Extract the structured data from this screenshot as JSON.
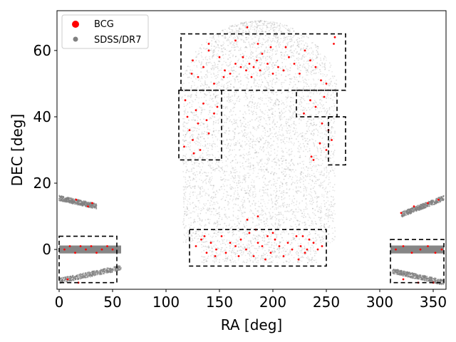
{
  "chart_data": {
    "type": "scatter",
    "xlabel": "RA [deg]",
    "ylabel": "DEC [deg]",
    "xlim": [
      -2,
      362
    ],
    "ylim": [
      -12,
      72
    ],
    "x_ticks": [
      0,
      50,
      100,
      150,
      200,
      250,
      300,
      350
    ],
    "y_ticks": [
      0,
      20,
      40,
      60
    ],
    "grid": false,
    "legend": {
      "position": "upper-left",
      "entries": [
        {
          "label": "BCG",
          "color": "#ff0000",
          "marker": "large-dot"
        },
        {
          "label": "SDSS/DR7",
          "color": "#808080",
          "marker": "small-dot"
        }
      ]
    },
    "series": [
      {
        "name": "SDSS/DR7",
        "color": "#808080",
        "description_regions": [
          {
            "ra": [
              112,
              262
            ],
            "dec": [
              -4,
              69
            ],
            "shape": "footprint-dome"
          },
          {
            "ra": [
              0,
              58
            ],
            "dec": [
              -1.2,
              1.2
            ],
            "shape": "stripe"
          },
          {
            "ra": [
              310,
              360
            ],
            "dec": [
              -1.2,
              1.2
            ],
            "shape": "stripe"
          },
          {
            "ra": [
              0,
              35
            ],
            "dec": [
              13,
              16
            ],
            "shape": "arc"
          },
          {
            "ra": [
              320,
              360
            ],
            "dec": [
              10,
              16
            ],
            "shape": "arc"
          },
          {
            "ra": [
              0,
              58
            ],
            "dec": [
              -10,
              -5
            ],
            "shape": "arc"
          },
          {
            "ra": [
              312,
              360
            ],
            "dec": [
              -10,
              -6
            ],
            "shape": "arc"
          }
        ]
      },
      {
        "name": "BCG",
        "color": "#ff0000",
        "points": [
          [
            125,
            57
          ],
          [
            130,
            52
          ],
          [
            135,
            55
          ],
          [
            140,
            60
          ],
          [
            145,
            50
          ],
          [
            150,
            58
          ],
          [
            155,
            54
          ],
          [
            160,
            53
          ],
          [
            165,
            56
          ],
          [
            170,
            55
          ],
          [
            172,
            58
          ],
          [
            175,
            54
          ],
          [
            178,
            56
          ],
          [
            180,
            52
          ],
          [
            182,
            55
          ],
          [
            185,
            57
          ],
          [
            188,
            54
          ],
          [
            190,
            59
          ],
          [
            195,
            56
          ],
          [
            200,
            53
          ],
          [
            205,
            55
          ],
          [
            210,
            54
          ],
          [
            215,
            58
          ],
          [
            220,
            56
          ],
          [
            225,
            53
          ],
          [
            230,
            60
          ],
          [
            235,
            57
          ],
          [
            240,
            55
          ],
          [
            245,
            51
          ],
          [
            250,
            50
          ],
          [
            258,
            64
          ],
          [
            257,
            62
          ],
          [
            176,
            67
          ],
          [
            186,
            62
          ],
          [
            198,
            61
          ],
          [
            212,
            61
          ],
          [
            140,
            62
          ],
          [
            165,
            63
          ],
          [
            124,
            53
          ],
          [
            154,
            52
          ],
          [
            118,
            45
          ],
          [
            120,
            40
          ],
          [
            122,
            36
          ],
          [
            125,
            33
          ],
          [
            128,
            42
          ],
          [
            130,
            38
          ],
          [
            132,
            30
          ],
          [
            135,
            44
          ],
          [
            140,
            35
          ],
          [
            145,
            41
          ],
          [
            148,
            43
          ],
          [
            117,
            31
          ],
          [
            126,
            29
          ],
          [
            138,
            39
          ],
          [
            229,
            41
          ],
          [
            240,
            43
          ],
          [
            246,
            38
          ],
          [
            252,
            36
          ],
          [
            255,
            33
          ],
          [
            248,
            46
          ],
          [
            235,
            45
          ],
          [
            236,
            28
          ],
          [
            238,
            27
          ],
          [
            244,
            32
          ],
          [
            250,
            30
          ],
          [
            128,
            1
          ],
          [
            133,
            3
          ],
          [
            138,
            -1
          ],
          [
            142,
            2
          ],
          [
            147,
            0
          ],
          [
            152,
            4
          ],
          [
            156,
            -1
          ],
          [
            160,
            2
          ],
          [
            165,
            1
          ],
          [
            170,
            3
          ],
          [
            175,
            0
          ],
          [
            178,
            5
          ],
          [
            182,
            -2
          ],
          [
            186,
            2
          ],
          [
            190,
            1
          ],
          [
            195,
            4
          ],
          [
            198,
            -1
          ],
          [
            202,
            3
          ],
          [
            206,
            1
          ],
          [
            210,
            -2
          ],
          [
            214,
            2
          ],
          [
            218,
            0
          ],
          [
            222,
            4
          ],
          [
            226,
            1
          ],
          [
            230,
            -1
          ],
          [
            234,
            3
          ],
          [
            238,
            2
          ],
          [
            242,
            0
          ],
          [
            246,
            1
          ],
          [
            136,
            4
          ],
          [
            168,
            -2
          ],
          [
            184,
            6
          ],
          [
            200,
            5
          ],
          [
            224,
            -3
          ],
          [
            146,
            -2
          ],
          [
            193,
            -3
          ],
          [
            176,
            9
          ],
          [
            186,
            10
          ],
          [
            228,
            4
          ],
          [
            232,
            0
          ],
          [
            5,
            0
          ],
          [
            10,
            1
          ],
          [
            15,
            -1
          ],
          [
            20,
            1
          ],
          [
            25,
            0
          ],
          [
            30,
            1
          ],
          [
            35,
            -1
          ],
          [
            40,
            0
          ],
          [
            45,
            1
          ],
          [
            50,
            0
          ],
          [
            8,
            -9
          ],
          [
            18,
            -10
          ],
          [
            16,
            15
          ],
          [
            27,
            13
          ],
          [
            31,
            14
          ],
          [
            315,
            0
          ],
          [
            322,
            1
          ],
          [
            330,
            -1
          ],
          [
            338,
            0
          ],
          [
            345,
            1
          ],
          [
            352,
            -1
          ],
          [
            358,
            0
          ],
          [
            320,
            11
          ],
          [
            332,
            13
          ],
          [
            345,
            14
          ],
          [
            355,
            15
          ],
          [
            322,
            -9
          ],
          [
            336,
            -10
          ],
          [
            350,
            -10
          ]
        ]
      }
    ],
    "rectangles": [
      {
        "ra": [
          114,
          268
        ],
        "dec": [
          48,
          65
        ]
      },
      {
        "ra": [
          112,
          152
        ],
        "dec": [
          27,
          48
        ]
      },
      {
        "ra": [
          222,
          260
        ],
        "dec": [
          40,
          48
        ]
      },
      {
        "ra": [
          252,
          268
        ],
        "dec": [
          25.5,
          40
        ]
      },
      {
        "ra": [
          122,
          250
        ],
        "dec": [
          -5,
          6
        ]
      },
      {
        "ra": [
          0,
          54
        ],
        "dec": [
          -10,
          4
        ]
      },
      {
        "ra": [
          310,
          360
        ],
        "dec": [
          -10,
          3
        ]
      }
    ]
  }
}
